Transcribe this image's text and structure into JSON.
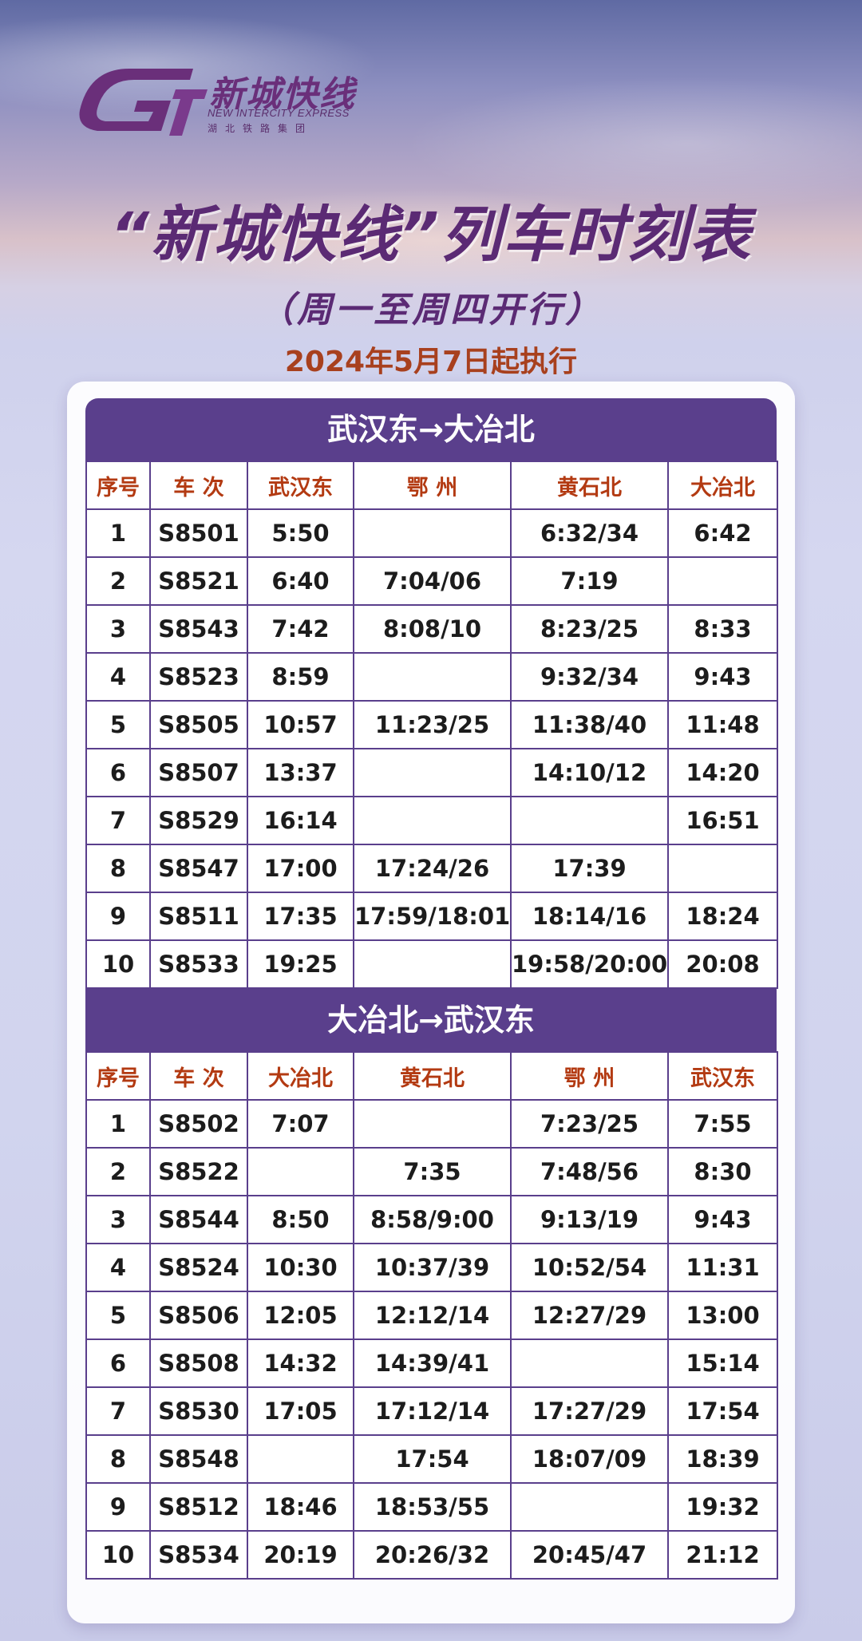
{
  "brand": {
    "name_cn": "新城快线",
    "name_en": "NEW INTERCITY EXPRESS",
    "org": "湖北铁路集团",
    "color": "#6a2f7a"
  },
  "header": {
    "title": "“新城快线”列车时刻表",
    "subtitle": "（周一至周四开行）",
    "effective_date": "2024年5月7日起执行"
  },
  "colors": {
    "table_header_bg": "#5a3f8c",
    "column_header_text": "#b33a12",
    "date_text": "#a8401e"
  },
  "sections": [
    {
      "title": "武汉东→大冶北",
      "columns": [
        "序号",
        "车 次",
        "武汉东",
        "鄂 州",
        "黄石北",
        "大冶北"
      ],
      "rows": [
        [
          "1",
          "S8501",
          "5:50",
          "",
          "6:32/34",
          "6:42"
        ],
        [
          "2",
          "S8521",
          "6:40",
          "7:04/06",
          "7:19",
          ""
        ],
        [
          "3",
          "S8543",
          "7:42",
          "8:08/10",
          "8:23/25",
          "8:33"
        ],
        [
          "4",
          "S8523",
          "8:59",
          "",
          "9:32/34",
          "9:43"
        ],
        [
          "5",
          "S8505",
          "10:57",
          "11:23/25",
          "11:38/40",
          "11:48"
        ],
        [
          "6",
          "S8507",
          "13:37",
          "",
          "14:10/12",
          "14:20"
        ],
        [
          "7",
          "S8529",
          "16:14",
          "",
          "",
          "16:51"
        ],
        [
          "8",
          "S8547",
          "17:00",
          "17:24/26",
          "17:39",
          ""
        ],
        [
          "9",
          "S8511",
          "17:35",
          "17:59/18:01",
          "18:14/16",
          "18:24"
        ],
        [
          "10",
          "S8533",
          "19:25",
          "",
          "19:58/20:00",
          "20:08"
        ]
      ]
    },
    {
      "title": "大冶北→武汉东",
      "columns": [
        "序号",
        "车 次",
        "大冶北",
        "黄石北",
        "鄂 州",
        "武汉东"
      ],
      "rows": [
        [
          "1",
          "S8502",
          "7:07",
          "",
          "7:23/25",
          "7:55"
        ],
        [
          "2",
          "S8522",
          "",
          "7:35",
          "7:48/56",
          "8:30"
        ],
        [
          "3",
          "S8544",
          "8:50",
          "8:58/9:00",
          "9:13/19",
          "9:43"
        ],
        [
          "4",
          "S8524",
          "10:30",
          "10:37/39",
          "10:52/54",
          "11:31"
        ],
        [
          "5",
          "S8506",
          "12:05",
          "12:12/14",
          "12:27/29",
          "13:00"
        ],
        [
          "6",
          "S8508",
          "14:32",
          "14:39/41",
          "",
          "15:14"
        ],
        [
          "7",
          "S8530",
          "17:05",
          "17:12/14",
          "17:27/29",
          "17:54"
        ],
        [
          "8",
          "S8548",
          "",
          "17:54",
          "18:07/09",
          "18:39"
        ],
        [
          "9",
          "S8512",
          "18:46",
          "18:53/55",
          "",
          "19:32"
        ],
        [
          "10",
          "S8534",
          "20:19",
          "20:26/32",
          "20:45/47",
          "21:12"
        ]
      ]
    }
  ]
}
